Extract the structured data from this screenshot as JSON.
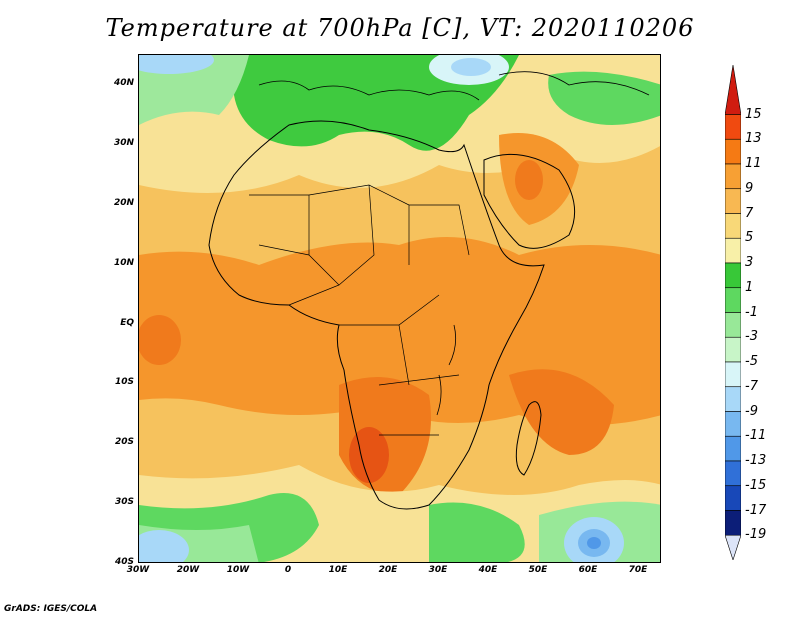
{
  "title": "Temperature at 700hPa [C], VT: 2020110206",
  "footer": "GrADS: IGES/COLA",
  "map": {
    "extent": {
      "lon_min": -30,
      "lon_max": 75,
      "lat_min": -40,
      "lat_max": 45
    },
    "lat_ticks": [
      "40N",
      "30N",
      "20N",
      "10N",
      "EQ",
      "10S",
      "20S",
      "30S",
      "40S"
    ],
    "lon_ticks": [
      "30W",
      "20W",
      "10W",
      "0",
      "10E",
      "20E",
      "30E",
      "40E",
      "50E",
      "60E",
      "70E"
    ]
  },
  "colorbar": {
    "labels": [
      "15",
      "13",
      "11",
      "9",
      "7",
      "5",
      "3",
      "1",
      "-1",
      "-3",
      "-5",
      "-7",
      "-9",
      "-11",
      "-13",
      "-15",
      "-17",
      "-19"
    ],
    "colors": [
      "#d01c10",
      "#f04a10",
      "#f57a14",
      "#f7a034",
      "#f8b852",
      "#f8d878",
      "#f8f0a8",
      "#38c838",
      "#5ed860",
      "#98e898",
      "#c8f5c8",
      "#d8f5f8",
      "#a8d8f8",
      "#78b8f0",
      "#5098e8",
      "#3070d8",
      "#1848b8",
      "#0c1e78",
      "#dce4f8"
    ]
  }
}
